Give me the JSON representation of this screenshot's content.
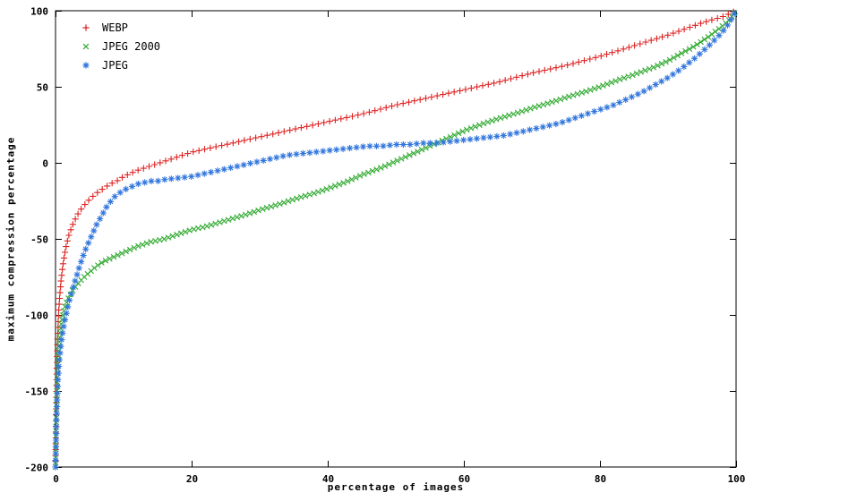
{
  "chart_data": {
    "type": "scatter",
    "title": "",
    "xlabel": "percentage of images",
    "ylabel": "maximum compression percentage",
    "xlim": [
      0,
      100
    ],
    "ylim": [
      -200,
      100
    ],
    "x_ticks": [
      0,
      20,
      40,
      60,
      80,
      100
    ],
    "y_ticks": [
      -200,
      -150,
      -100,
      -50,
      0,
      50,
      100
    ],
    "grid": false,
    "legend_position": "top-left-inside",
    "axis_color": "#000000",
    "background_color": "#ffffff",
    "series": [
      {
        "name": "WEBP",
        "marker": "plus",
        "color": "#dd2222",
        "marker_step_px": 6.5,
        "points": [
          [
            0,
            -200
          ],
          [
            0.05,
            -180
          ],
          [
            0.1,
            -162
          ],
          [
            0.15,
            -147
          ],
          [
            0.2,
            -135
          ],
          [
            0.3,
            -117
          ],
          [
            0.4,
            -104
          ],
          [
            0.5,
            -95
          ],
          [
            0.65,
            -86
          ],
          [
            0.8,
            -78
          ],
          [
            1,
            -70
          ],
          [
            1.3,
            -61
          ],
          [
            1.6,
            -54
          ],
          [
            2,
            -47
          ],
          [
            2.5,
            -41
          ],
          [
            3,
            -36
          ],
          [
            3.5,
            -32
          ],
          [
            4,
            -29
          ],
          [
            5,
            -24
          ],
          [
            6,
            -20
          ],
          [
            7,
            -17
          ],
          [
            8,
            -14
          ],
          [
            9,
            -12
          ],
          [
            10,
            -9
          ],
          [
            12,
            -5
          ],
          [
            14,
            -2
          ],
          [
            16,
            1
          ],
          [
            18,
            4
          ],
          [
            20,
            7
          ],
          [
            25,
            12
          ],
          [
            30,
            17
          ],
          [
            35,
            22
          ],
          [
            40,
            27
          ],
          [
            45,
            32
          ],
          [
            50,
            38
          ],
          [
            55,
            43
          ],
          [
            60,
            48
          ],
          [
            65,
            53
          ],
          [
            70,
            59
          ],
          [
            75,
            64
          ],
          [
            80,
            70
          ],
          [
            85,
            77
          ],
          [
            90,
            84
          ],
          [
            95,
            92
          ],
          [
            98,
            96
          ],
          [
            100,
            100
          ]
        ]
      },
      {
        "name": "JPEG 2000",
        "marker": "cross",
        "color": "#33aa33",
        "marker_step_px": 5,
        "points": [
          [
            0,
            -200
          ],
          [
            0.05,
            -186
          ],
          [
            0.1,
            -172
          ],
          [
            0.15,
            -160
          ],
          [
            0.2,
            -150
          ],
          [
            0.3,
            -136
          ],
          [
            0.4,
            -127
          ],
          [
            0.5,
            -120
          ],
          [
            0.7,
            -111
          ],
          [
            0.9,
            -104
          ],
          [
            1.2,
            -98
          ],
          [
            1.5,
            -93
          ],
          [
            2,
            -88
          ],
          [
            2.5,
            -84
          ],
          [
            3,
            -81
          ],
          [
            4,
            -76
          ],
          [
            5,
            -72
          ],
          [
            6,
            -68
          ],
          [
            7,
            -65
          ],
          [
            8,
            -63
          ],
          [
            9,
            -61
          ],
          [
            10,
            -59
          ],
          [
            12,
            -55
          ],
          [
            14,
            -52
          ],
          [
            16,
            -50
          ],
          [
            18,
            -47
          ],
          [
            20,
            -44
          ],
          [
            22,
            -42
          ],
          [
            25,
            -38
          ],
          [
            28,
            -34
          ],
          [
            30,
            -31
          ],
          [
            33,
            -27
          ],
          [
            35,
            -24
          ],
          [
            38,
            -20
          ],
          [
            40,
            -17
          ],
          [
            43,
            -12
          ],
          [
            45,
            -8
          ],
          [
            48,
            -3
          ],
          [
            50,
            1
          ],
          [
            52,
            5
          ],
          [
            55,
            11
          ],
          [
            58,
            17
          ],
          [
            60,
            21
          ],
          [
            63,
            26
          ],
          [
            65,
            29
          ],
          [
            68,
            33
          ],
          [
            70,
            36
          ],
          [
            73,
            40
          ],
          [
            75,
            43
          ],
          [
            78,
            47
          ],
          [
            80,
            50
          ],
          [
            83,
            55
          ],
          [
            85,
            58
          ],
          [
            88,
            63
          ],
          [
            90,
            67
          ],
          [
            92,
            72
          ],
          [
            94,
            77
          ],
          [
            96,
            83
          ],
          [
            98,
            90
          ],
          [
            99,
            94
          ],
          [
            100,
            100
          ]
        ]
      },
      {
        "name": "JPEG",
        "marker": "asterisk",
        "color": "#3377dd",
        "marker_step_px": 7.5,
        "points": [
          [
            0,
            -200
          ],
          [
            0.05,
            -188
          ],
          [
            0.1,
            -178
          ],
          [
            0.15,
            -169
          ],
          [
            0.2,
            -161
          ],
          [
            0.3,
            -149
          ],
          [
            0.4,
            -140
          ],
          [
            0.5,
            -133
          ],
          [
            0.7,
            -124
          ],
          [
            0.9,
            -116
          ],
          [
            1.1,
            -110
          ],
          [
            1.4,
            -103
          ],
          [
            1.7,
            -97
          ],
          [
            2,
            -91
          ],
          [
            2.4,
            -85
          ],
          [
            2.8,
            -79
          ],
          [
            3.2,
            -73
          ],
          [
            3.6,
            -67
          ],
          [
            4,
            -62
          ],
          [
            4.5,
            -56
          ],
          [
            5,
            -51
          ],
          [
            5.5,
            -46
          ],
          [
            6,
            -41
          ],
          [
            6.5,
            -37
          ],
          [
            7,
            -33
          ],
          [
            7.5,
            -29
          ],
          [
            8,
            -26
          ],
          [
            8.5,
            -23
          ],
          [
            9,
            -21
          ],
          [
            10,
            -18
          ],
          [
            11,
            -16
          ],
          [
            12,
            -14
          ],
          [
            13,
            -13
          ],
          [
            14,
            -12
          ],
          [
            15,
            -12
          ],
          [
            16,
            -11
          ],
          [
            18,
            -10
          ],
          [
            20,
            -9
          ],
          [
            22,
            -7
          ],
          [
            24,
            -5
          ],
          [
            26,
            -3
          ],
          [
            28,
            -1
          ],
          [
            30,
            1
          ],
          [
            32,
            3
          ],
          [
            34,
            5
          ],
          [
            36,
            6
          ],
          [
            38,
            7
          ],
          [
            40,
            8
          ],
          [
            42,
            9
          ],
          [
            44,
            10
          ],
          [
            46,
            11
          ],
          [
            48,
            11
          ],
          [
            50,
            12
          ],
          [
            52,
            12
          ],
          [
            54,
            13
          ],
          [
            56,
            13
          ],
          [
            58,
            14
          ],
          [
            60,
            15
          ],
          [
            62,
            16
          ],
          [
            64,
            17
          ],
          [
            66,
            18
          ],
          [
            68,
            20
          ],
          [
            70,
            22
          ],
          [
            72,
            24
          ],
          [
            74,
            26
          ],
          [
            76,
            29
          ],
          [
            78,
            32
          ],
          [
            80,
            35
          ],
          [
            82,
            38
          ],
          [
            84,
            42
          ],
          [
            86,
            46
          ],
          [
            88,
            51
          ],
          [
            90,
            56
          ],
          [
            92,
            62
          ],
          [
            94,
            69
          ],
          [
            96,
            77
          ],
          [
            98,
            86
          ],
          [
            99,
            92
          ],
          [
            100,
            100
          ]
        ]
      }
    ]
  }
}
